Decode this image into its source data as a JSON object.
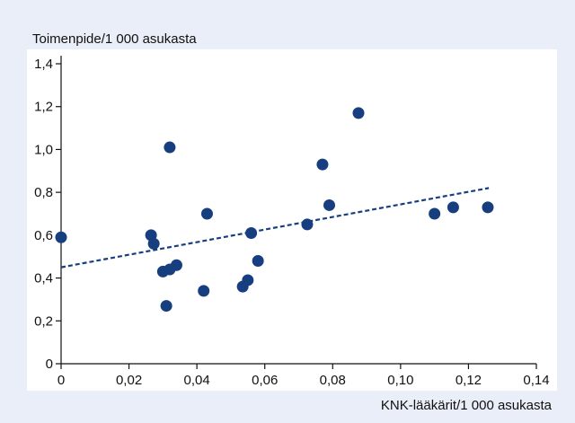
{
  "chart_data": {
    "type": "scatter",
    "y_label": "Toimenpide/1 000 asukasta",
    "x_label": "KNK-lääkärit/1 000 asukasta",
    "color": "#173f7f",
    "x": [
      0,
      0.0265,
      0.0273,
      0.03,
      0.032,
      0.034,
      0.031,
      0.032,
      0.042,
      0.043,
      0.0535,
      0.055,
      0.056,
      0.058,
      0.0725,
      0.077,
      0.079,
      0.0876,
      0.11,
      0.1155,
      0.1257
    ],
    "values": [
      0.59,
      0.6,
      0.56,
      0.43,
      0.44,
      0.46,
      0.27,
      1.01,
      0.34,
      0.7,
      0.36,
      0.39,
      0.61,
      0.48,
      0.65,
      0.93,
      0.74,
      1.17,
      0.7,
      0.73,
      0.73
    ],
    "trendline": {
      "x": [
        0,
        0.126
      ],
      "y": [
        0.45,
        0.82
      ]
    },
    "xlim": [
      0,
      0.14
    ],
    "xticks": [
      0,
      {
        "value": 0.02,
        "label": "0,02"
      },
      {
        "value": 0.04,
        "label": "0,04"
      },
      {
        "value": 0.06,
        "label": "0,06"
      },
      {
        "value": 0.08,
        "label": "0,08"
      },
      {
        "value": 0.1,
        "label": "0,10"
      },
      {
        "value": 0.12,
        "label": "0,12"
      },
      {
        "value": 0.14,
        "label": "0,14"
      }
    ],
    "ylim": [
      0,
      1.4
    ],
    "yticks": [
      0,
      {
        "value": 0.2,
        "label": "0,2"
      },
      {
        "value": 0.4,
        "label": "0,4"
      },
      {
        "value": 0.6,
        "label": "0,6"
      },
      {
        "value": 0.8,
        "label": "0,8"
      },
      {
        "value": 1.0,
        "label": "1,0"
      },
      {
        "value": 1.2,
        "label": "1,2"
      },
      {
        "value": 1.4,
        "label": "1,4"
      }
    ]
  }
}
